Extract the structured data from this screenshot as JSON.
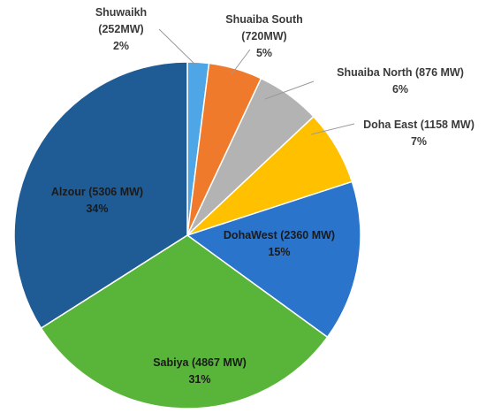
{
  "chart_data": {
    "type": "pie",
    "title": "",
    "slices": [
      {
        "name": "Shuwaikh",
        "capacity": "(252MW)",
        "value": 2,
        "pct_label": "2%",
        "color": "#4ea6e6"
      },
      {
        "name": "Shuaiba South",
        "capacity": "(720MW)",
        "value": 5,
        "pct_label": "5%",
        "color": "#f07a2c"
      },
      {
        "name": "Shuaiba North (876 MW)",
        "capacity": "",
        "value": 6,
        "pct_label": "6%",
        "color": "#b3b3b3"
      },
      {
        "name": "Doha East (1158 MW)",
        "capacity": "",
        "value": 7,
        "pct_label": "7%",
        "color": "#ffc000"
      },
      {
        "name": "DohaWest (2360 MW)",
        "capacity": "",
        "value": 15,
        "pct_label": "15%",
        "color": "#2b74cc"
      },
      {
        "name": "Sabiya (4867 MW)",
        "capacity": "",
        "value": 31,
        "pct_label": "31%",
        "color": "#59b53a"
      },
      {
        "name": "Alzour (5306 MW)",
        "capacity": "",
        "value": 34,
        "pct_label": "34%",
        "color": "#1f5c96"
      }
    ],
    "legend": "none",
    "label_placement": "mixed-inside-outside"
  }
}
